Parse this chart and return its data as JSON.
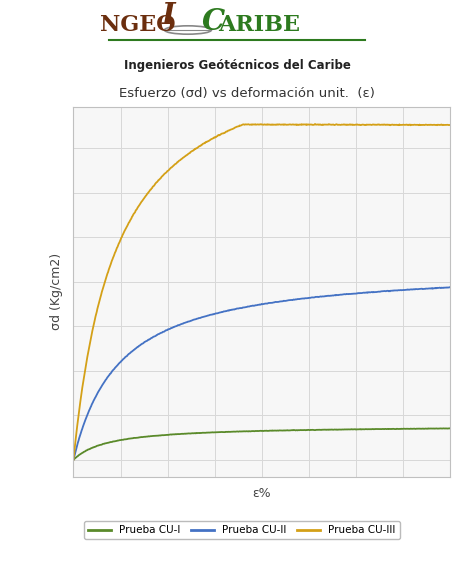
{
  "title": "Esfuerzo (σd) vs deformación unit.  (ε)",
  "subtitle": "Ingenieros Geótécnicos del Caribe",
  "xlabel": "ε%",
  "ylabel": "σd (Kg/cm2)",
  "background_color": "#ffffff",
  "plot_bg_color": "#f7f7f7",
  "grid_color": "#d8d8d8",
  "colors": {
    "CU1": "#5a8a2a",
    "CU2": "#4472c4",
    "CU3": "#d4a017"
  },
  "legend_labels": [
    "Prueba CU-I",
    "Prueba CU-II",
    "Prueba CU-III"
  ],
  "line_width": 1.3,
  "ingeo_color": "#6b2e0e",
  "caribe_color": "#2d7a1f",
  "underline_color": "#2d7a1f"
}
